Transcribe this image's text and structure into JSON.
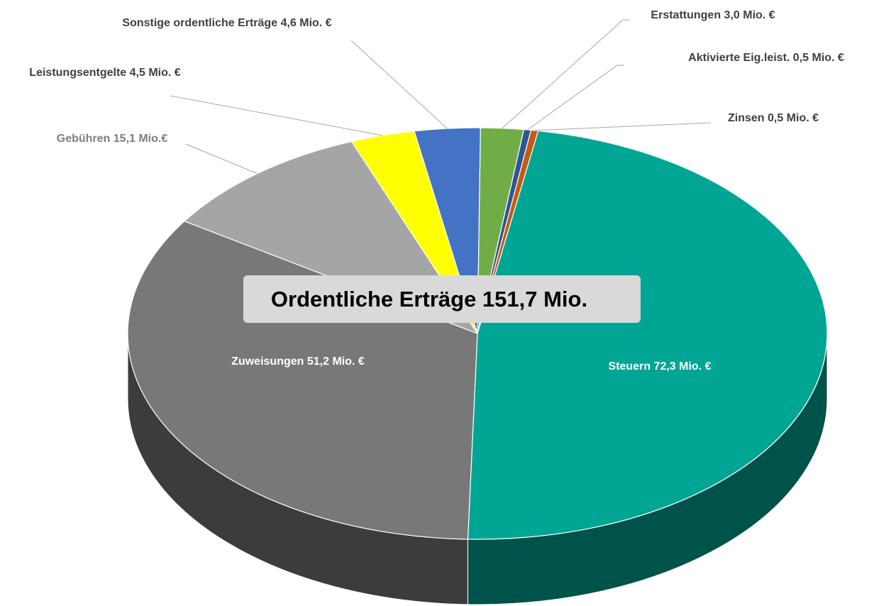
{
  "chart_data": {
    "type": "pie",
    "title": "Ordentliche Erträge 151,7 Mio.",
    "categories": [
      "Steuern",
      "Zuweisungen",
      "Gebühren",
      "Leistungsentgelte",
      "Sonstige ordentliche Erträge",
      "Erstattungen",
      "Aktivierte Eig.leist.",
      "Zinsen"
    ],
    "values": [
      72.3,
      51.2,
      15.1,
      4.5,
      4.6,
      3.0,
      0.5,
      0.5
    ],
    "value_labels": [
      "72,3 Mio. €",
      "51,2 Mio. €",
      "15,1 Mio.€",
      "4,5 Mio. €",
      "4,6 Mio. €",
      "3,0 Mio. €",
      "0,5 Mio. €",
      "0,5 Mio. €"
    ],
    "colors": [
      "#00a693",
      "#787878",
      "#a5a5a5",
      "#ffff00",
      "#4472c4",
      "#70ad47",
      "#2f5597",
      "#c55a11"
    ]
  }
}
